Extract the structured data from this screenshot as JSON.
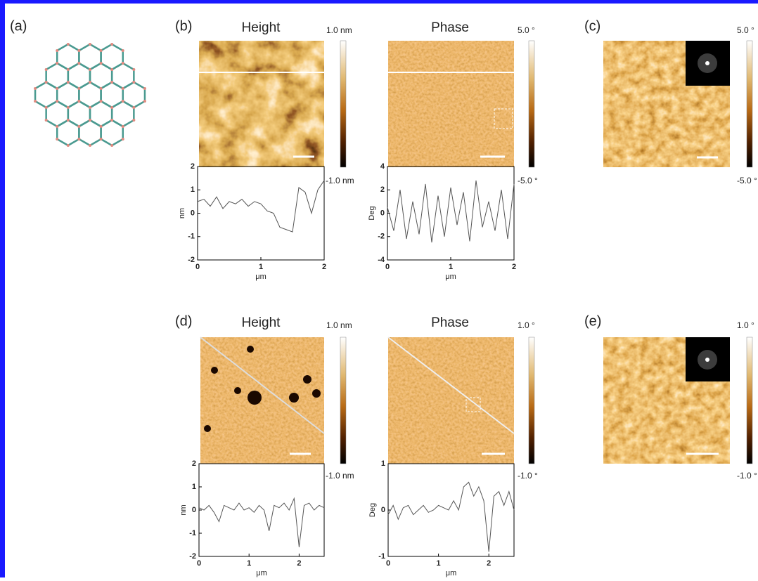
{
  "figure": {
    "panel_labels": [
      "(a)",
      "(b)",
      "(c)",
      "(d)",
      "(e)"
    ],
    "titles": [
      "Height",
      "Phase",
      "Height",
      "Phase"
    ],
    "colorbar_labels": [
      "1.0 nm",
      "-1.0 nm",
      "5.0 °",
      "-5.0 °",
      "5.0 °",
      "-5.0 °",
      "1.0 nm",
      "-1.0 nm",
      "1.0 °",
      "-1.0 °",
      "1.0 °",
      "-1.0 °"
    ]
  },
  "chart_data": [
    {
      "type": "line",
      "x": [
        0,
        0.1,
        0.2,
        0.3,
        0.4,
        0.5,
        0.6,
        0.7,
        0.8,
        0.9,
        1,
        1.1,
        1.2,
        1.3,
        1.4,
        1.5,
        1.6,
        1.7,
        1.8,
        1.9,
        2
      ],
      "values": [
        0.5,
        0.6,
        0.3,
        0.7,
        0.2,
        0.5,
        0.4,
        0.6,
        0.3,
        0.5,
        0.4,
        0.1,
        0.0,
        -0.6,
        -0.7,
        -0.8,
        1.1,
        0.9,
        0.0,
        1.0,
        1.4
      ],
      "xlim": [
        0,
        2
      ],
      "xticks": [
        0,
        1,
        2
      ],
      "ylim": [
        -2,
        2
      ],
      "yticks": [
        -2,
        -1,
        0,
        1,
        2
      ],
      "xlabel": "μm",
      "ylabel": "nm",
      "color": "#555555"
    },
    {
      "type": "line",
      "x": [
        0,
        0.1,
        0.2,
        0.3,
        0.4,
        0.5,
        0.6,
        0.7,
        0.8,
        0.9,
        1,
        1.1,
        1.2,
        1.3,
        1.4,
        1.5,
        1.6,
        1.7,
        1.8,
        1.9,
        2
      ],
      "values": [
        0.5,
        -1.5,
        2.0,
        -2.2,
        1.0,
        -1.8,
        2.5,
        -2.5,
        1.5,
        -2.0,
        2.2,
        -1.0,
        1.8,
        -2.4,
        2.8,
        -1.2,
        1.0,
        -1.5,
        2.0,
        -2.2,
        2.5
      ],
      "xlim": [
        0,
        2
      ],
      "xticks": [
        0,
        1,
        2
      ],
      "ylim": [
        -4,
        4
      ],
      "yticks": [
        -4,
        -2,
        0,
        2,
        4
      ],
      "xlabel": "μm",
      "ylabel": "Deg",
      "color": "#555555"
    },
    {
      "type": "line",
      "x": [
        0,
        0.1,
        0.2,
        0.3,
        0.4,
        0.5,
        0.6,
        0.7,
        0.8,
        0.9,
        1,
        1.1,
        1.2,
        1.3,
        1.4,
        1.5,
        1.6,
        1.7,
        1.8,
        1.9,
        2,
        2.1,
        2.2,
        2.3,
        2.4,
        2.5
      ],
      "values": [
        0.1,
        0.0,
        0.2,
        -0.1,
        -0.5,
        0.2,
        0.1,
        0.0,
        0.3,
        0.0,
        0.1,
        -0.1,
        0.2,
        0.0,
        -0.9,
        0.2,
        0.1,
        0.3,
        0.0,
        0.5,
        -1.6,
        0.2,
        0.3,
        0.0,
        0.2,
        0.1
      ],
      "xlim": [
        0,
        2.5
      ],
      "xticks": [
        0,
        1,
        2
      ],
      "ylim": [
        -2,
        2
      ],
      "yticks": [
        -2,
        -1,
        0,
        1,
        2
      ],
      "xlabel": "μm",
      "ylabel": "nm",
      "color": "#555555"
    },
    {
      "type": "line",
      "x": [
        0,
        0.1,
        0.2,
        0.3,
        0.4,
        0.5,
        0.6,
        0.7,
        0.8,
        0.9,
        1,
        1.1,
        1.2,
        1.3,
        1.4,
        1.5,
        1.6,
        1.7,
        1.8,
        1.9,
        2,
        2.1,
        2.2,
        2.3,
        2.4,
        2.5
      ],
      "values": [
        -0.1,
        0.1,
        -0.2,
        0.05,
        0.1,
        -0.1,
        0.0,
        0.1,
        -0.05,
        0.0,
        0.1,
        0.05,
        0.0,
        0.2,
        0.0,
        0.5,
        0.6,
        0.3,
        0.5,
        0.2,
        -0.9,
        0.3,
        0.4,
        0.1,
        0.4,
        0.0
      ],
      "xlim": [
        0,
        2.5
      ],
      "xticks": [
        0,
        1,
        2
      ],
      "ylim": [
        -1,
        1
      ],
      "yticks": [
        -1,
        0,
        1
      ],
      "xlabel": "μm",
      "ylabel": "Deg",
      "color": "#555555"
    }
  ]
}
